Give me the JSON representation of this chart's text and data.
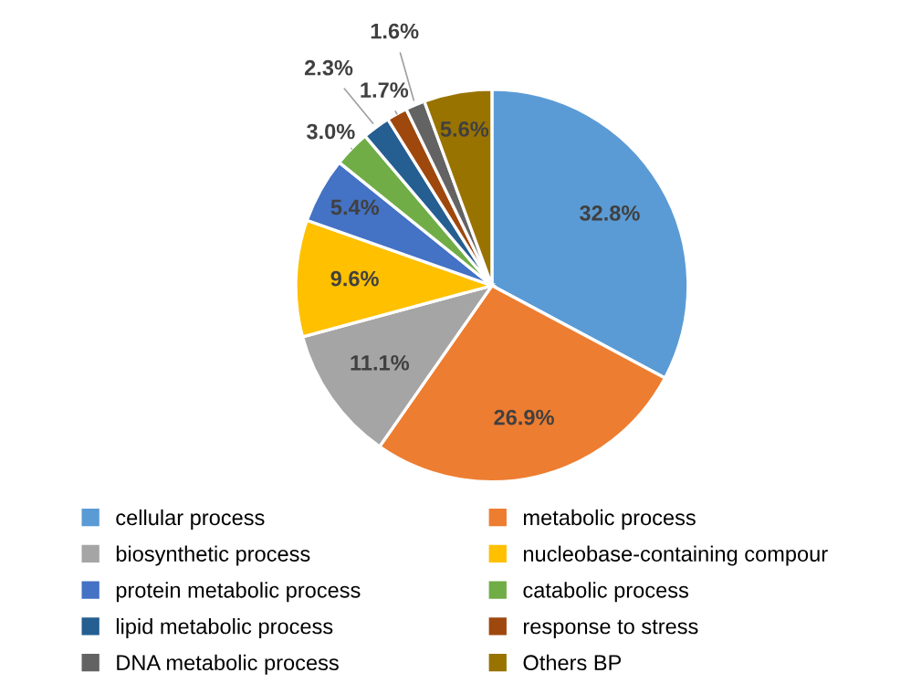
{
  "chart_data": {
    "type": "pie",
    "categories": [
      "cellular process",
      "metabolic process",
      "biosynthetic process",
      "nucleobase-containing compour",
      "protein metabolic process",
      "catabolic process",
      "lipid metabolic process",
      "response to stress",
      "DNA metabolic process",
      "Others BP"
    ],
    "values": [
      32.8,
      26.9,
      11.1,
      9.6,
      5.4,
      3.0,
      2.3,
      1.7,
      1.6,
      5.6
    ],
    "colors": [
      "#5b9bd5",
      "#ed7d31",
      "#a5a5a5",
      "#ffc000",
      "#4472c4",
      "#70ad47",
      "#255e91",
      "#9e480e",
      "#636363",
      "#997300"
    ],
    "value_labels": [
      "32.8%",
      "26.9%",
      "11.1%",
      "9.6%",
      "5.4%",
      "3.0%",
      "2.3%",
      "1.7%",
      "1.6%",
      "5.6%"
    ],
    "legend": "bottom"
  }
}
